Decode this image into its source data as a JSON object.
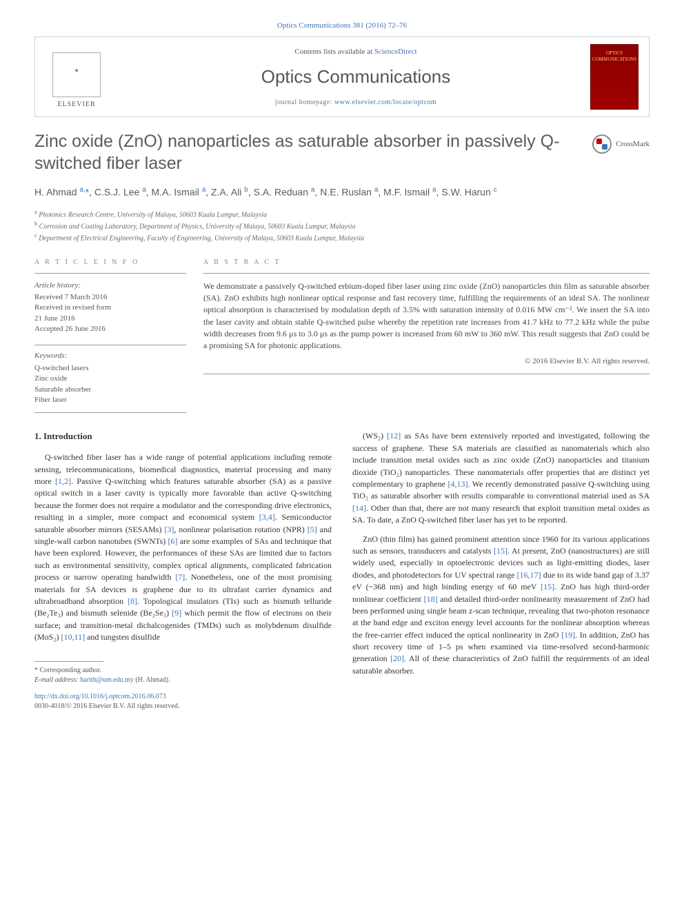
{
  "top_link": "Optics Communications 381 (2016) 72–76",
  "header": {
    "elsevier": "ELSEVIER",
    "contents_prefix": "Contents lists available at ",
    "contents_link": "ScienceDirect",
    "journal_name": "Optics Communications",
    "homepage_prefix": "journal homepage: ",
    "homepage_link": "www.elsevier.com/locate/optcom",
    "cover_text": "OPTICS COMMUNICATIONS"
  },
  "crossmark": "CrossMark",
  "title": "Zinc oxide (ZnO) nanoparticles as saturable absorber in passively Q-switched fiber laser",
  "authors_html": "H. Ahmad <sup>a,</sup><span class='ast'>*</span>, C.S.J. Lee <sup>a</sup>, M.A. Ismail <sup>a</sup>, Z.A. Ali <sup>b</sup>, S.A. Reduan <sup>a</sup>, N.E. Ruslan <sup>a</sup>, M.F. Ismail <sup>a</sup>, S.W. Harun <sup>c</sup>",
  "affiliations": [
    {
      "sup": "a",
      "text": "Photonics Research Centre, University of Malaya, 50603 Kuala Lumpur, Malaysia"
    },
    {
      "sup": "b",
      "text": "Corrosion and Coating Laboratory, Department of Physics, University of Malaya, 50603 Kuala Lumpur, Malaysia"
    },
    {
      "sup": "c",
      "text": "Department of Electrical Engineering, Faculty of Engineering, University of Malaya, 50603 Kuala Lumpur, Malaysia"
    }
  ],
  "info": {
    "heading": "A R T I C L E  I N F O",
    "history_label": "Article history:",
    "history": [
      "Received 7 March 2016",
      "Received in revised form",
      "21 June 2016",
      "Accepted 26 June 2016"
    ],
    "keywords_label": "Keywords:",
    "keywords": [
      "Q-switched lasers",
      "Zinc oxide",
      "Saturable absorber",
      "Fiber laser"
    ]
  },
  "abstract": {
    "heading": "A B S T R A C T",
    "text": "We demonstrate a passively Q-switched erbium-doped fiber laser using zinc oxide (ZnO) nanoparticles thin film as saturable absorber (SA). ZnO exhibits high nonlinear optical response and fast recovery time, fulfilling the requirements of an ideal SA. The nonlinear optical absorption is characterised by modulation depth of 3.5% with saturation intensity of 0.016 MW cm⁻². We insert the SA into the laser cavity and obtain stable Q-switched pulse whereby the repetition rate increases from 41.7 kHz to 77.2 kHz while the pulse width decreases from 9.6 μs to 3.0 μs as the pump power is increased from 60 mW to 360 mW. This result suggests that ZnO could be a promising SA for photonic applications.",
    "copyright": "© 2016 Elsevier B.V. All rights reserved."
  },
  "body": {
    "section_heading": "1. Introduction",
    "col1_p1": "Q-switched fiber laser has a wide range of potential applications including remote sensing, telecommunications, biomedical diagnostics, material processing and many more [1,2]. Passive Q-switching which features saturable absorber (SA) as a passive optical switch in a laser cavity is typically more favorable than active Q-switching because the former does not require a modulator and the corresponding drive electronics, resulting in a simpler, more compact and economical system [3,4]. Semiconductor saturable absorber mirrors (SESAMs) [3], nonlinear polarisation rotation (NPR) [5] and single-wall carbon nanotubes (SWNTs) [6] are some examples of SAs and technique that have been explored. However, the performances of these SAs are limited due to factors such as environmental sensitivity, complex optical alignments, complicated fabrication process or narrow operating bandwidth [7]. Nonetheless, one of the most promising materials for SA devices is graphene due to its ultrafast carrier dynamics and ultrabroadband absorption [8]. Topological insulators (TIs) such as bismuth telluride (Be₂Te₃) and bismuth selenide (Be₂Se₃) [9] which permit the flow of electrons on their surface; and transition-metal dichalcogenides (TMDs) such as molybdenum disulfide (MoS₂) [10,11] and tungsten disulfide",
    "col2_p1": "(WS₂) [12] as SAs have been extensively reported and investigated, following the success of graphene. These SA materials are classified as nanomaterials which also include transition metal oxides such as zinc oxide (ZnO) nanoparticles and titanium dioxide (TiO₂) nanoparticles. These nanomaterials offer properties that are distinct yet complementary to graphene [4,13]. We recently demonstrated passive Q-switching using TiO₂ as saturable absorber with results comparable to conventional material used as SA [14]. Other than that, there are not many research that exploit transition metal oxides as SA. To date, a ZnO Q-switched fiber laser has yet to be reported.",
    "col2_p2": "ZnO (thin film) has gained prominent attention since 1960 for its various applications such as sensors, transducers and catalysts [15]. At present, ZnO (nanostructures) are still widely used, especially in optoelectronic devices such as light-emitting diodes, laser diodes, and photodetectors for UV spectral range [16,17] due to its wide band gap of 3.37 eV (~368 nm) and high binding energy of 60 meV [15]. ZnO has high third-order nonlinear coefficient [18] and detailed third-order nonlinearity measurement of ZnO had been performed using single beam z-scan technique, revealing that two-photon resonance at the band edge and exciton energy level accounts for the nonlinear absorption whereas the free-carrier effect induced the optical nonlinearity in ZnO [19]. In addition, ZnO has short recovery time of 1–5 ps when examined via time-resolved second-harmonic generation [20]. All of these characteristics of ZnO fulfill the requirements of an ideal saturable absorber."
  },
  "footnotes": {
    "corresponding": "* Corresponding author.",
    "email_label": "E-mail address: ",
    "email": "harith@um.edu.my",
    "email_suffix": " (H. Ahmad).",
    "doi": "http://dx.doi.org/10.1016/j.optcom.2016.06.073",
    "copyright": "0030-4018/© 2016 Elsevier B.V. All rights reserved."
  },
  "refs_col1": [
    "[1,2]",
    "[3,4]",
    "[3]",
    "[5]",
    "[6]",
    "[7]",
    "[8]",
    "[9]",
    "[10,11]"
  ],
  "refs_col2": [
    "[12]",
    "[4,13]",
    "[14]",
    "[15]",
    "[16,17]",
    "[15]",
    "[18]",
    "[19]",
    "[20]"
  ],
  "colors": {
    "link": "#3e72b8",
    "text": "#333333",
    "heading_gray": "#5a5a5a",
    "border": "#d0d0d0",
    "rule": "#999999",
    "cover_bg": "#8b0000",
    "cover_text": "#ffcc66"
  }
}
